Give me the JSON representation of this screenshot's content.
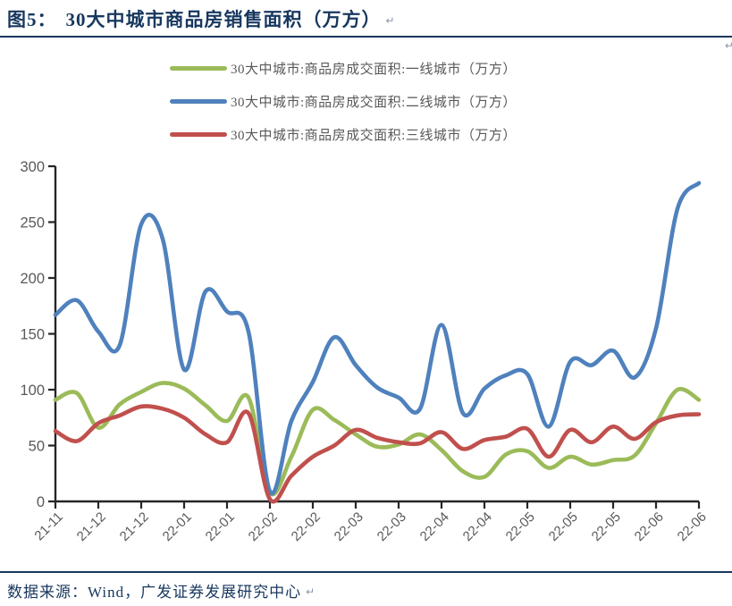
{
  "title": {
    "figure_label": "图5：",
    "text": "30大中城市商品房销售面积（万方）"
  },
  "marks": {
    "pilcrow": "↵"
  },
  "legend": {
    "items": [
      {
        "label": "30大中城市:商品房成交面积:一线城市（万方）",
        "color": "#9BBB59"
      },
      {
        "label": "30大中城市:商品房成交面积:二线城市（万方）",
        "color": "#4F81BD"
      },
      {
        "label": "30大中城市:商品房成交面积:三线城市（万方）",
        "color": "#C0504D"
      }
    ]
  },
  "footer": {
    "text": "数据来源：Wind，广发证券发展研究中心"
  },
  "colors": {
    "title_navy": "#17375E",
    "axis": "#262626",
    "tick_label_gray": "#595959"
  },
  "chart_data": {
    "type": "line",
    "title": "30大中城市商品房销售面积（万方）",
    "xlabel": "",
    "ylabel": "",
    "ylim": [
      0,
      300
    ],
    "y_ticks": [
      0,
      50,
      100,
      150,
      200,
      250,
      300
    ],
    "grid": false,
    "legend_position": "top",
    "x_tick_labels": [
      "21-11",
      "21-12",
      "21-12",
      "22-01",
      "22-01",
      "22-02",
      "22-02",
      "22-03",
      "22-03",
      "22-04",
      "22-04",
      "22-05",
      "22-05",
      "22-05",
      "22-06",
      "22-06"
    ],
    "points_per_tick_interval": 2,
    "n_points": 31,
    "series": [
      {
        "name": "30大中城市:商品房成交面积:一线城市（万方）",
        "color": "#9BBB59",
        "values": [
          91,
          97,
          66,
          87,
          98,
          106,
          101,
          86,
          72,
          93,
          8,
          40,
          82,
          73,
          60,
          49,
          51,
          60,
          46,
          27,
          22,
          42,
          45,
          30,
          40,
          33,
          37,
          41,
          70,
          100,
          91
        ]
      },
      {
        "name": "30大中城市:商品房成交面积:二线城市（万方）",
        "color": "#4F81BD",
        "values": [
          167,
          180,
          152,
          140,
          248,
          235,
          118,
          188,
          170,
          152,
          9,
          72,
          107,
          147,
          122,
          102,
          93,
          83,
          158,
          79,
          101,
          113,
          114,
          67,
          125,
          122,
          135,
          111,
          155,
          262,
          285
        ]
      },
      {
        "name": "30大中城市:商品房成交面积:三线城市（万方）",
        "color": "#C0504D",
        "values": [
          63,
          54,
          70,
          77,
          85,
          83,
          75,
          60,
          53,
          79,
          2,
          23,
          40,
          50,
          64,
          57,
          53,
          52,
          62,
          47,
          55,
          58,
          65,
          40,
          64,
          53,
          67,
          56,
          71,
          77,
          78
        ]
      }
    ]
  }
}
